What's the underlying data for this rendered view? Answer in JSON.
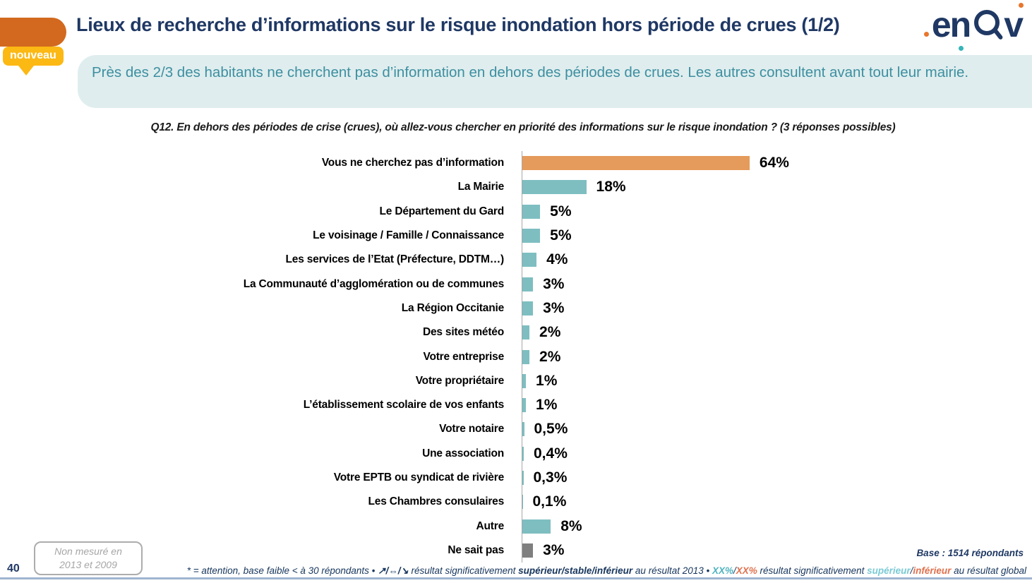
{
  "header": {
    "title": "Lieux de recherche d’informations sur le risque inondation hors période de crues (1/2)",
    "badge": "nouveau",
    "logo": {
      "part1": "e",
      "part2": "n",
      "part3": "v"
    }
  },
  "summary": "Près des 2/3 des habitants ne cherchent pas d’information en dehors des périodes de crues. Les autres consultent avant tout leur mairie.",
  "question": "Q12. En dehors des périodes de crise (crues), où allez-vous chercher en priorité des informations sur le risque inondation ? (3 réponses possibles)",
  "chart_data": {
    "type": "bar",
    "orientation": "horizontal",
    "title": "Lieux de recherche d’informations sur le risque inondation hors période de crues",
    "xlabel": "",
    "ylabel": "",
    "xlim": [
      0,
      100
    ],
    "grid": false,
    "legend": "none",
    "categories": [
      "Vous ne cherchez pas d’information",
      "La Mairie",
      "Le Département du Gard",
      "Le voisinage / Famille / Connaissance",
      "Les services de l’Etat (Préfecture, DDTM…)",
      "La Communauté d’agglomération ou de communes",
      "La Région Occitanie",
      "Des sites météo",
      "Votre entreprise",
      "Votre propriétaire",
      "L’établissement scolaire de vos enfants",
      "Votre notaire",
      "Une association",
      "Votre EPTB ou syndicat de rivière",
      "Les Chambres consulaires",
      "Autre",
      "Ne sait pas"
    ],
    "values": [
      64,
      18,
      5,
      5,
      4,
      3,
      3,
      2,
      2,
      1,
      1,
      0.5,
      0.4,
      0.3,
      0.1,
      8,
      3
    ],
    "value_labels": [
      "64%",
      "18%",
      "5%",
      "5%",
      "4%",
      "3%",
      "3%",
      "2%",
      "2%",
      "1%",
      "1%",
      "0,5%",
      "0,4%",
      "0,3%",
      "0,1%",
      "8%",
      "3%"
    ],
    "bar_colors": [
      "#E59B5B",
      "#7EBEC1",
      "#7EBEC1",
      "#7EBEC1",
      "#7EBEC1",
      "#7EBEC1",
      "#7EBEC1",
      "#7EBEC1",
      "#7EBEC1",
      "#7EBEC1",
      "#7EBEC1",
      "#7EBEC1",
      "#7EBEC1",
      "#7EBEC1",
      "#7EBEC1",
      "#7EBEC1",
      "#7F7F7F"
    ],
    "axis_line_color": "#A6A6A6"
  },
  "note_box": {
    "line1": "Non mesuré en",
    "line2": "2013 et 2009"
  },
  "page_number": "40",
  "base_note": "Base : 1514 répondants",
  "footnote_segments": [
    {
      "text": "* = attention, base faible < à 30 répondants • ",
      "style": "dark"
    },
    {
      "text": "↗/⇔/↘",
      "style": "dark-bold"
    },
    {
      "text": " résultat significativement ",
      "style": "dark"
    },
    {
      "text": "supérieur/stable/inférieur",
      "style": "dark-bold"
    },
    {
      "text": " au résultat 2013 • ",
      "style": "dark"
    },
    {
      "text": "XX%",
      "style": "teal-bold"
    },
    {
      "text": "/",
      "style": "dark"
    },
    {
      "text": "XX%",
      "style": "orange-bold"
    },
    {
      "text": " résultat significativement ",
      "style": "dark"
    },
    {
      "text": "supérieur",
      "style": "lightteal-bold"
    },
    {
      "text": "/",
      "style": "dark"
    },
    {
      "text": "inférieur",
      "style": "orange-bold"
    },
    {
      "text": " au résultat global",
      "style": "dark"
    }
  ],
  "colors": {
    "title_navy": "#1F3864",
    "orange_tab": "#D2691E",
    "bar_orange": "#E59B5B",
    "bar_teal": "#7EBEC1",
    "bar_gray": "#7F7F7F",
    "banner_bg": "#DFEDEE",
    "banner_text": "#3D8FA0",
    "badge_yellow": "#FCB813"
  }
}
